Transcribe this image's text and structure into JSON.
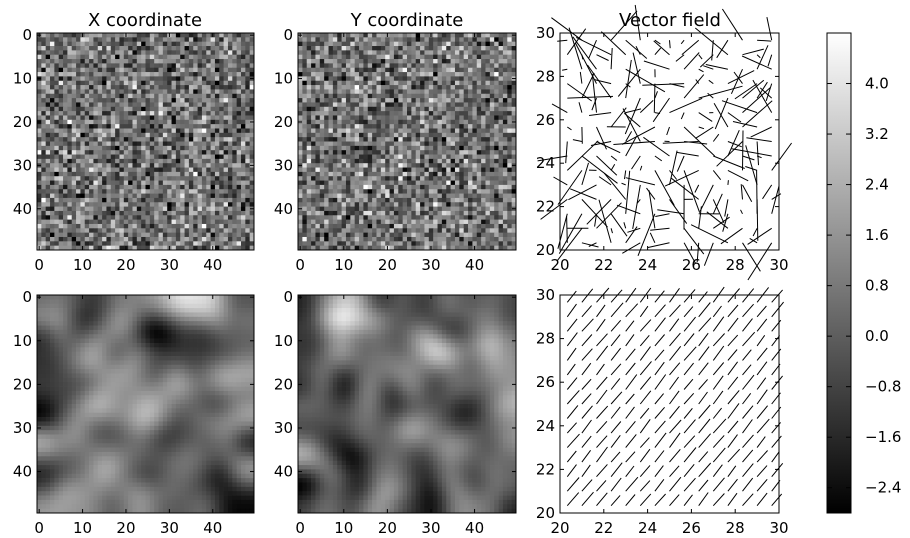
{
  "chart_data": {
    "type": "heatmap",
    "colormap": "gray",
    "colorbar": {
      "range": [
        -2.8,
        4.8
      ],
      "ticks": [
        4.0,
        3.2,
        2.4,
        1.6,
        0.8,
        0.0,
        -0.8,
        -1.6,
        -2.4
      ],
      "tick_labels": [
        "4.0",
        "3.2",
        "2.4",
        "1.6",
        "0.8",
        "0.0",
        "−0.8",
        "−1.6",
        "−2.4"
      ]
    },
    "panels": [
      {
        "id": "x-raw",
        "kind": "image",
        "title": "X coordinate",
        "grid": [
          50,
          50
        ],
        "field": "noise",
        "seed": 11,
        "xticks": [
          "0",
          "10",
          "20",
          "30",
          "40"
        ],
        "yticks": [
          "0",
          "10",
          "20",
          "30",
          "40"
        ]
      },
      {
        "id": "y-raw",
        "kind": "image",
        "title": "Y coordinate",
        "grid": [
          50,
          50
        ],
        "field": "noise",
        "seed": 29,
        "xticks": [
          "0",
          "10",
          "20",
          "30",
          "40"
        ],
        "yticks": [
          "0",
          "10",
          "20",
          "30",
          "40"
        ]
      },
      {
        "id": "vec-raw",
        "kind": "quiver",
        "title": "Vector field",
        "xlim": [
          20,
          30
        ],
        "ylim": [
          20,
          30
        ],
        "field": "random",
        "seed": 47,
        "xticks": [
          "20",
          "22",
          "24",
          "26",
          "28",
          "30"
        ],
        "yticks": [
          "20",
          "22",
          "24",
          "26",
          "28",
          "30"
        ]
      },
      {
        "id": "x-smooth",
        "kind": "image",
        "title": "",
        "grid": [
          50,
          50
        ],
        "field": "smooth",
        "seed": 11,
        "xticks": [
          "0",
          "10",
          "20",
          "30",
          "40"
        ],
        "yticks": [
          "0",
          "10",
          "20",
          "30",
          "40"
        ]
      },
      {
        "id": "y-smooth",
        "kind": "image",
        "title": "",
        "grid": [
          50,
          50
        ],
        "field": "smooth",
        "seed": 29,
        "xticks": [
          "0",
          "10",
          "20",
          "30",
          "40"
        ],
        "yticks": [
          "0",
          "10",
          "20",
          "30",
          "40"
        ]
      },
      {
        "id": "vec-smooth",
        "kind": "quiver",
        "title": "",
        "xlim": [
          20,
          30
        ],
        "ylim": [
          20,
          30
        ],
        "field": "uniform",
        "seed": 5,
        "xticks": [
          "20",
          "22",
          "24",
          "26",
          "28",
          "30"
        ],
        "yticks": [
          "20",
          "22",
          "24",
          "26",
          "28",
          "30"
        ]
      }
    ]
  }
}
